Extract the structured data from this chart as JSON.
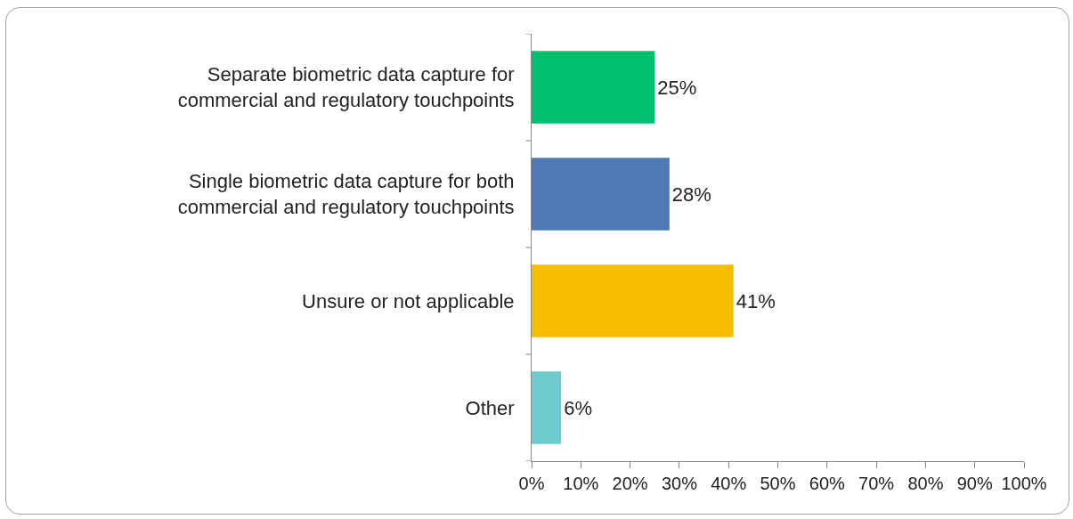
{
  "chart_data": {
    "type": "bar",
    "orientation": "horizontal",
    "categories": [
      "Separate biometric data capture for commercial and regulatory touchpoints",
      "Single biometric data capture for both commercial and regulatory touchpoints",
      "Unsure or not applicable",
      "Other"
    ],
    "values": [
      25,
      28,
      41,
      6
    ],
    "colors": [
      "#00c070",
      "#4f7bb5",
      "#f7bd00",
      "#6ccbcd"
    ],
    "value_labels": [
      "25%",
      "28%",
      "41%",
      "6%"
    ],
    "xlim": [
      0,
      100
    ],
    "xticks": [
      {
        "value": 0,
        "label": "0%"
      },
      {
        "value": 10,
        "label": "10%"
      },
      {
        "value": 20,
        "label": "20%"
      },
      {
        "value": 30,
        "label": "30%"
      },
      {
        "value": 40,
        "label": "40%"
      },
      {
        "value": 50,
        "label": "50%"
      },
      {
        "value": 60,
        "label": "60%"
      },
      {
        "value": 70,
        "label": "70%"
      },
      {
        "value": 80,
        "label": "80%"
      },
      {
        "value": 90,
        "label": "90%"
      },
      {
        "value": 100,
        "label": "100%"
      }
    ],
    "grid": false,
    "legend": false
  }
}
